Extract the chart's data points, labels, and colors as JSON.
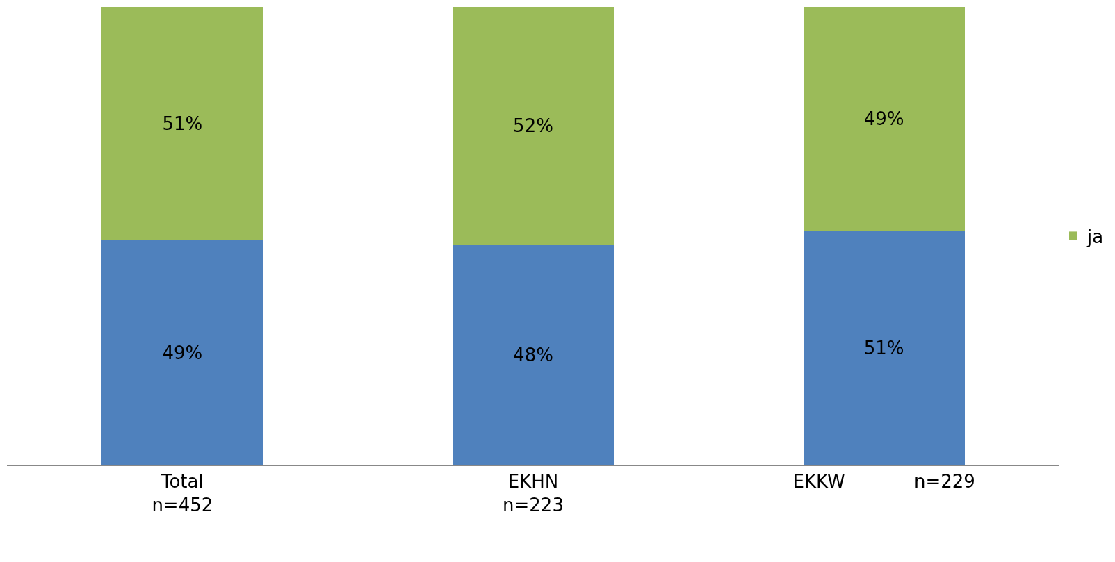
{
  "chart_data": {
    "type": "bar",
    "stacked": true,
    "categories": [
      "Total\nn=452",
      "EKHN\nn=223",
      "EKKW            n=229"
    ],
    "series": [
      {
        "color": "#4f81bd",
        "values": [
          49,
          48,
          51
        ],
        "value_labels": [
          "49%",
          "48%",
          "51%"
        ]
      },
      {
        "name": "ja",
        "color": "#9bbb59",
        "values": [
          51,
          52,
          49
        ],
        "value_labels": [
          "51%",
          "52%",
          "49%"
        ]
      }
    ],
    "ylim": [
      0,
      100
    ],
    "tick_labels": "x",
    "legend": "right"
  }
}
